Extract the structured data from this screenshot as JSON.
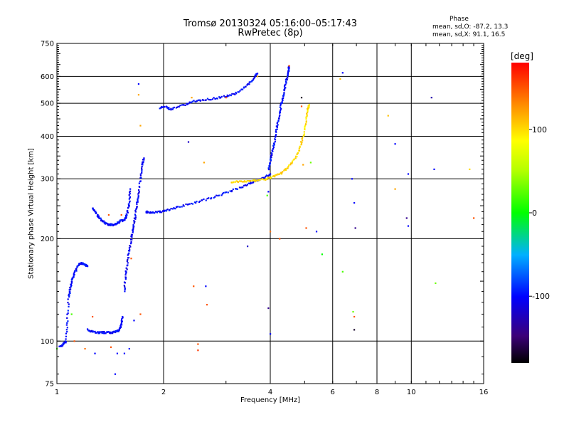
{
  "header": {
    "title_line1": "Tromsø 20130324 05:16:00–05:17:43",
    "title_line2": "RwPretec (8p)",
    "phase_title": "Phase",
    "phase_o": "mean, sd,O: -87.2, 13.3",
    "phase_x": "mean, sd,X:  91.1, 16.5"
  },
  "colorbar": {
    "unit": "[deg]",
    "range": [
      -180,
      180
    ],
    "ticks": [
      "100",
      "0",
      "-100"
    ],
    "tick_values": [
      100,
      0,
      -100
    ]
  },
  "chart_data": {
    "type": "scatter",
    "xlabel": "Frequency [MHz]",
    "ylabel": "Stationary phase Virtual Height [km]",
    "x_scale": "log",
    "y_scale": "log",
    "xlim": [
      1,
      16
    ],
    "ylim": [
      75,
      750
    ],
    "x_ticks": [
      1,
      2,
      4,
      6,
      8,
      10,
      16
    ],
    "x_tick_labels": [
      "1",
      "2",
      "4",
      "6",
      "8",
      "10",
      "16"
    ],
    "y_ticks": [
      75,
      100,
      200,
      300,
      400,
      500,
      600,
      750
    ],
    "y_tick_labels": [
      "75",
      "100",
      "200",
      "300",
      "400",
      "500",
      "600",
      "750"
    ],
    "grid": true,
    "traces": [
      {
        "name": "",
        "phase": -100,
        "points": [
          [
            1.02,
            96
          ],
          [
            1.04,
            98
          ],
          [
            1.06,
            100
          ],
          [
            1.07,
            115
          ],
          [
            1.08,
            135
          ],
          [
            1.09,
            142
          ],
          [
            1.1,
            150
          ],
          [
            1.12,
            158
          ],
          [
            1.14,
            165
          ],
          [
            1.17,
            170
          ],
          [
            1.19,
            168
          ],
          [
            1.22,
            166
          ]
        ]
      },
      {
        "name": "",
        "phase": -100,
        "points": [
          [
            1.22,
            108
          ],
          [
            1.25,
            107
          ],
          [
            1.3,
            106
          ],
          [
            1.35,
            106
          ],
          [
            1.4,
            106
          ],
          [
            1.45,
            106
          ],
          [
            1.48,
            107
          ],
          [
            1.5,
            108
          ],
          [
            1.52,
            112
          ],
          [
            1.53,
            118
          ]
        ]
      },
      {
        "name": "",
        "phase": -100,
        "points": [
          [
            1.26,
            245
          ],
          [
            1.28,
            240
          ],
          [
            1.31,
            232
          ],
          [
            1.34,
            226
          ],
          [
            1.37,
            222
          ],
          [
            1.4,
            220
          ],
          [
            1.44,
            220
          ],
          [
            1.48,
            222
          ],
          [
            1.52,
            226
          ],
          [
            1.56,
            228
          ],
          [
            1.58,
            240
          ],
          [
            1.6,
            255
          ],
          [
            1.61,
            280
          ]
        ]
      },
      {
        "name": "",
        "phase": -105,
        "points": [
          [
            1.55,
            140
          ],
          [
            1.56,
            155
          ],
          [
            1.58,
            170
          ],
          [
            1.6,
            185
          ],
          [
            1.62,
            200
          ],
          [
            1.64,
            215
          ],
          [
            1.66,
            230
          ],
          [
            1.68,
            250
          ],
          [
            1.7,
            270
          ],
          [
            1.72,
            300
          ],
          [
            1.74,
            330
          ],
          [
            1.76,
            345
          ]
        ]
      },
      {
        "name": "",
        "phase": -100,
        "points": [
          [
            1.78,
            240
          ],
          [
            1.85,
            238
          ],
          [
            1.95,
            240
          ],
          [
            2.05,
            243
          ],
          [
            2.2,
            248
          ],
          [
            2.4,
            254
          ],
          [
            2.6,
            260
          ],
          [
            2.85,
            268
          ],
          [
            3.1,
            276
          ],
          [
            3.35,
            285
          ],
          [
            3.55,
            293
          ],
          [
            3.7,
            298
          ],
          [
            3.85,
            302
          ],
          [
            4.0,
            310
          ]
        ]
      },
      {
        "name": "",
        "phase": -100,
        "points": [
          [
            3.95,
            320
          ],
          [
            4.0,
            340
          ],
          [
            4.05,
            360
          ],
          [
            4.1,
            380
          ],
          [
            4.15,
            410
          ],
          [
            4.2,
            440
          ],
          [
            4.25,
            470
          ],
          [
            4.3,
            500
          ],
          [
            4.35,
            530
          ],
          [
            4.4,
            560
          ],
          [
            4.45,
            590
          ],
          [
            4.5,
            620
          ],
          [
            4.52,
            640
          ]
        ]
      },
      {
        "name": "",
        "phase": -100,
        "points": [
          [
            1.95,
            485
          ],
          [
            2.02,
            488
          ],
          [
            2.1,
            480
          ],
          [
            2.25,
            492
          ],
          [
            2.4,
            505
          ],
          [
            2.55,
            512
          ],
          [
            2.75,
            516
          ],
          [
            2.95,
            523
          ],
          [
            3.15,
            532
          ],
          [
            3.35,
            550
          ],
          [
            3.5,
            575
          ],
          [
            3.62,
            600
          ],
          [
            3.68,
            612
          ]
        ]
      },
      {
        "name": "",
        "phase": 100,
        "points": [
          [
            3.1,
            294
          ],
          [
            3.3,
            295
          ],
          [
            3.5,
            296
          ],
          [
            3.7,
            297
          ],
          [
            3.9,
            300
          ],
          [
            4.1,
            305
          ],
          [
            4.3,
            312
          ],
          [
            4.5,
            325
          ],
          [
            4.7,
            345
          ],
          [
            4.85,
            370
          ],
          [
            4.95,
            400
          ],
          [
            5.05,
            440
          ],
          [
            5.1,
            480
          ],
          [
            5.15,
            495
          ]
        ]
      }
    ],
    "scattered_points": [
      {
        "x": 1.7,
        "y": 570,
        "phase": -100
      },
      {
        "x": 1.7,
        "y": 530,
        "phase": 120
      },
      {
        "x": 1.72,
        "y": 430,
        "phase": 120
      },
      {
        "x": 2.35,
        "y": 385,
        "phase": -120
      },
      {
        "x": 2.6,
        "y": 335,
        "phase": 120
      },
      {
        "x": 2.43,
        "y": 145,
        "phase": 150
      },
      {
        "x": 2.63,
        "y": 145,
        "phase": -100
      },
      {
        "x": 2.65,
        "y": 128,
        "phase": 150
      },
      {
        "x": 2.5,
        "y": 98,
        "phase": 150
      },
      {
        "x": 2.5,
        "y": 94,
        "phase": 160
      },
      {
        "x": 3.45,
        "y": 190,
        "phase": -120
      },
      {
        "x": 3.92,
        "y": 268,
        "phase": 20
      },
      {
        "x": 3.95,
        "y": 275,
        "phase": -100
      },
      {
        "x": 4.0,
        "y": 210,
        "phase": 140
      },
      {
        "x": 3.95,
        "y": 125,
        "phase": -140
      },
      {
        "x": 4.0,
        "y": 105,
        "phase": -100
      },
      {
        "x": 4.25,
        "y": 200,
        "phase": 150
      },
      {
        "x": 5.05,
        "y": 215,
        "phase": 150
      },
      {
        "x": 5.2,
        "y": 335,
        "phase": 30
      },
      {
        "x": 5.4,
        "y": 210,
        "phase": -100
      },
      {
        "x": 5.6,
        "y": 180,
        "phase": 0
      },
      {
        "x": 6.4,
        "y": 615,
        "phase": -100
      },
      {
        "x": 6.3,
        "y": 590,
        "phase": 110
      },
      {
        "x": 6.8,
        "y": 300,
        "phase": -100
      },
      {
        "x": 6.9,
        "y": 255,
        "phase": -100
      },
      {
        "x": 6.95,
        "y": 215,
        "phase": -140
      },
      {
        "x": 6.4,
        "y": 160,
        "phase": 20
      },
      {
        "x": 6.85,
        "y": 122,
        "phase": 30
      },
      {
        "x": 6.9,
        "y": 118,
        "phase": 150
      },
      {
        "x": 6.9,
        "y": 108,
        "phase": -170
      },
      {
        "x": 8.6,
        "y": 460,
        "phase": 110
      },
      {
        "x": 9.0,
        "y": 380,
        "phase": -100
      },
      {
        "x": 9.0,
        "y": 280,
        "phase": 120
      },
      {
        "x": 9.7,
        "y": 230,
        "phase": -140
      },
      {
        "x": 9.8,
        "y": 218,
        "phase": -100
      },
      {
        "x": 9.8,
        "y": 310,
        "phase": -100
      },
      {
        "x": 11.4,
        "y": 520,
        "phase": -130
      },
      {
        "x": 11.6,
        "y": 320,
        "phase": -100
      },
      {
        "x": 11.7,
        "y": 148,
        "phase": 30
      },
      {
        "x": 14.6,
        "y": 320,
        "phase": 100
      },
      {
        "x": 15.0,
        "y": 230,
        "phase": 150
      },
      {
        "x": 1.0,
        "y": 95,
        "phase": 20
      },
      {
        "x": 1.1,
        "y": 120,
        "phase": 20
      },
      {
        "x": 1.12,
        "y": 100,
        "phase": 150
      },
      {
        "x": 1.26,
        "y": 118,
        "phase": 150
      },
      {
        "x": 1.2,
        "y": 95,
        "phase": 140
      },
      {
        "x": 1.28,
        "y": 92,
        "phase": -100
      },
      {
        "x": 1.42,
        "y": 96,
        "phase": 150
      },
      {
        "x": 1.48,
        "y": 92,
        "phase": -100
      },
      {
        "x": 1.46,
        "y": 80,
        "phase": -100
      },
      {
        "x": 1.55,
        "y": 92,
        "phase": -100
      },
      {
        "x": 1.6,
        "y": 95,
        "phase": -100
      },
      {
        "x": 1.65,
        "y": 115,
        "phase": -100
      },
      {
        "x": 1.72,
        "y": 120,
        "phase": 150
      },
      {
        "x": 1.4,
        "y": 235,
        "phase": 150
      },
      {
        "x": 1.52,
        "y": 235,
        "phase": 150
      },
      {
        "x": 1.62,
        "y": 175,
        "phase": 150
      },
      {
        "x": 3.0,
        "y": 520,
        "phase": 150
      },
      {
        "x": 2.4,
        "y": 520,
        "phase": 120
      },
      {
        "x": 3.68,
        "y": 600,
        "phase": 120
      },
      {
        "x": 4.52,
        "y": 645,
        "phase": 150
      },
      {
        "x": 4.9,
        "y": 520,
        "phase": -170
      },
      {
        "x": 4.9,
        "y": 490,
        "phase": 150
      },
      {
        "x": 4.95,
        "y": 330,
        "phase": 120
      }
    ]
  }
}
